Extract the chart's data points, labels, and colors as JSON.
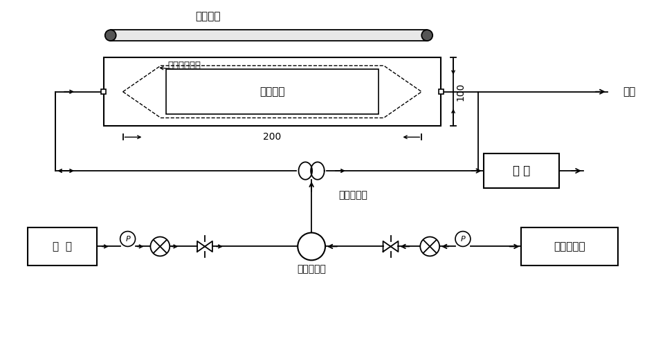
{
  "bg_color": "#ffffff",
  "line_color": "#000000",
  "labels": {
    "uv_source": "紫外光源",
    "quartz_window": "石英玻璃窗口",
    "test_sample": "测试样片",
    "dim_100": "100",
    "dim_200": "200",
    "outlet": "出口",
    "analysis": "分 析",
    "flow_controller": "流量控制器",
    "gas_mixer": "气体混合器",
    "oxygen": "氧  气",
    "standard_gas": "标准乙醚气"
  },
  "layout": {
    "fig_w": 9.48,
    "fig_h": 5.12,
    "dpi": 100
  }
}
